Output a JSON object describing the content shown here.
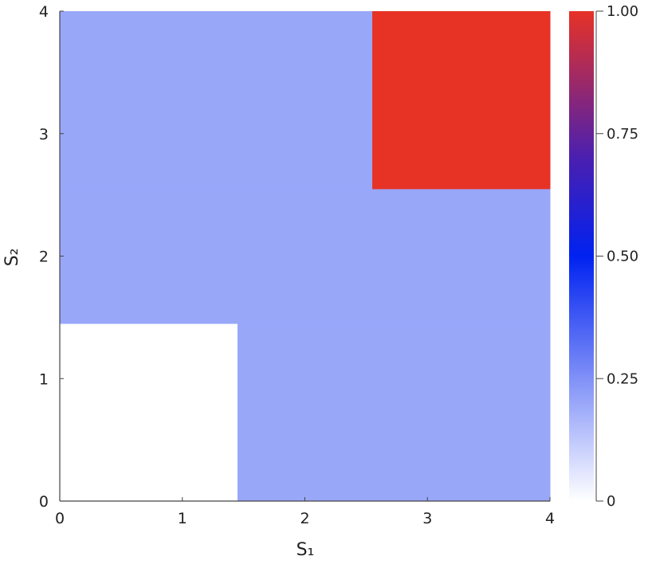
{
  "chart_data": {
    "type": "heatmap",
    "title": "",
    "xlabel": "S₁",
    "ylabel": "S₂",
    "xlim": [
      0,
      4
    ],
    "ylim": [
      0,
      4
    ],
    "x_ticks": [
      "0",
      "1",
      "2",
      "3",
      "4"
    ],
    "y_ticks": [
      "0",
      "1",
      "2",
      "3",
      "4"
    ],
    "grid": false,
    "cells": [
      {
        "x0": 0,
        "x1": 1.45,
        "y0": 0,
        "y1": 1.45,
        "value": 0
      },
      {
        "x0": 1.45,
        "x1": 4,
        "y0": 0,
        "y1": 1.45,
        "value": 0.2
      },
      {
        "x0": 0,
        "x1": 4,
        "y0": 1.45,
        "y1": 2.55,
        "value": 0.2
      },
      {
        "x0": 0,
        "x1": 2.55,
        "y0": 2.55,
        "y1": 4,
        "value": 0.2
      },
      {
        "x0": 2.55,
        "x1": 4,
        "y0": 2.55,
        "y1": 4,
        "value": 1
      }
    ],
    "colorbar": {
      "range": [
        0,
        1
      ],
      "ticks": [
        "0",
        "0.25",
        "0.50",
        "0.75",
        "1.00"
      ],
      "tick_values": [
        0,
        0.25,
        0.5,
        0.75,
        1
      ],
      "colormap_stops": [
        {
          "value": 0,
          "color": "#ffffff"
        },
        {
          "value": 0.5,
          "color": "#0022f0"
        },
        {
          "value": 0.7,
          "color": "#4a1fb0"
        },
        {
          "value": 1,
          "color": "#e73226"
        }
      ]
    }
  }
}
